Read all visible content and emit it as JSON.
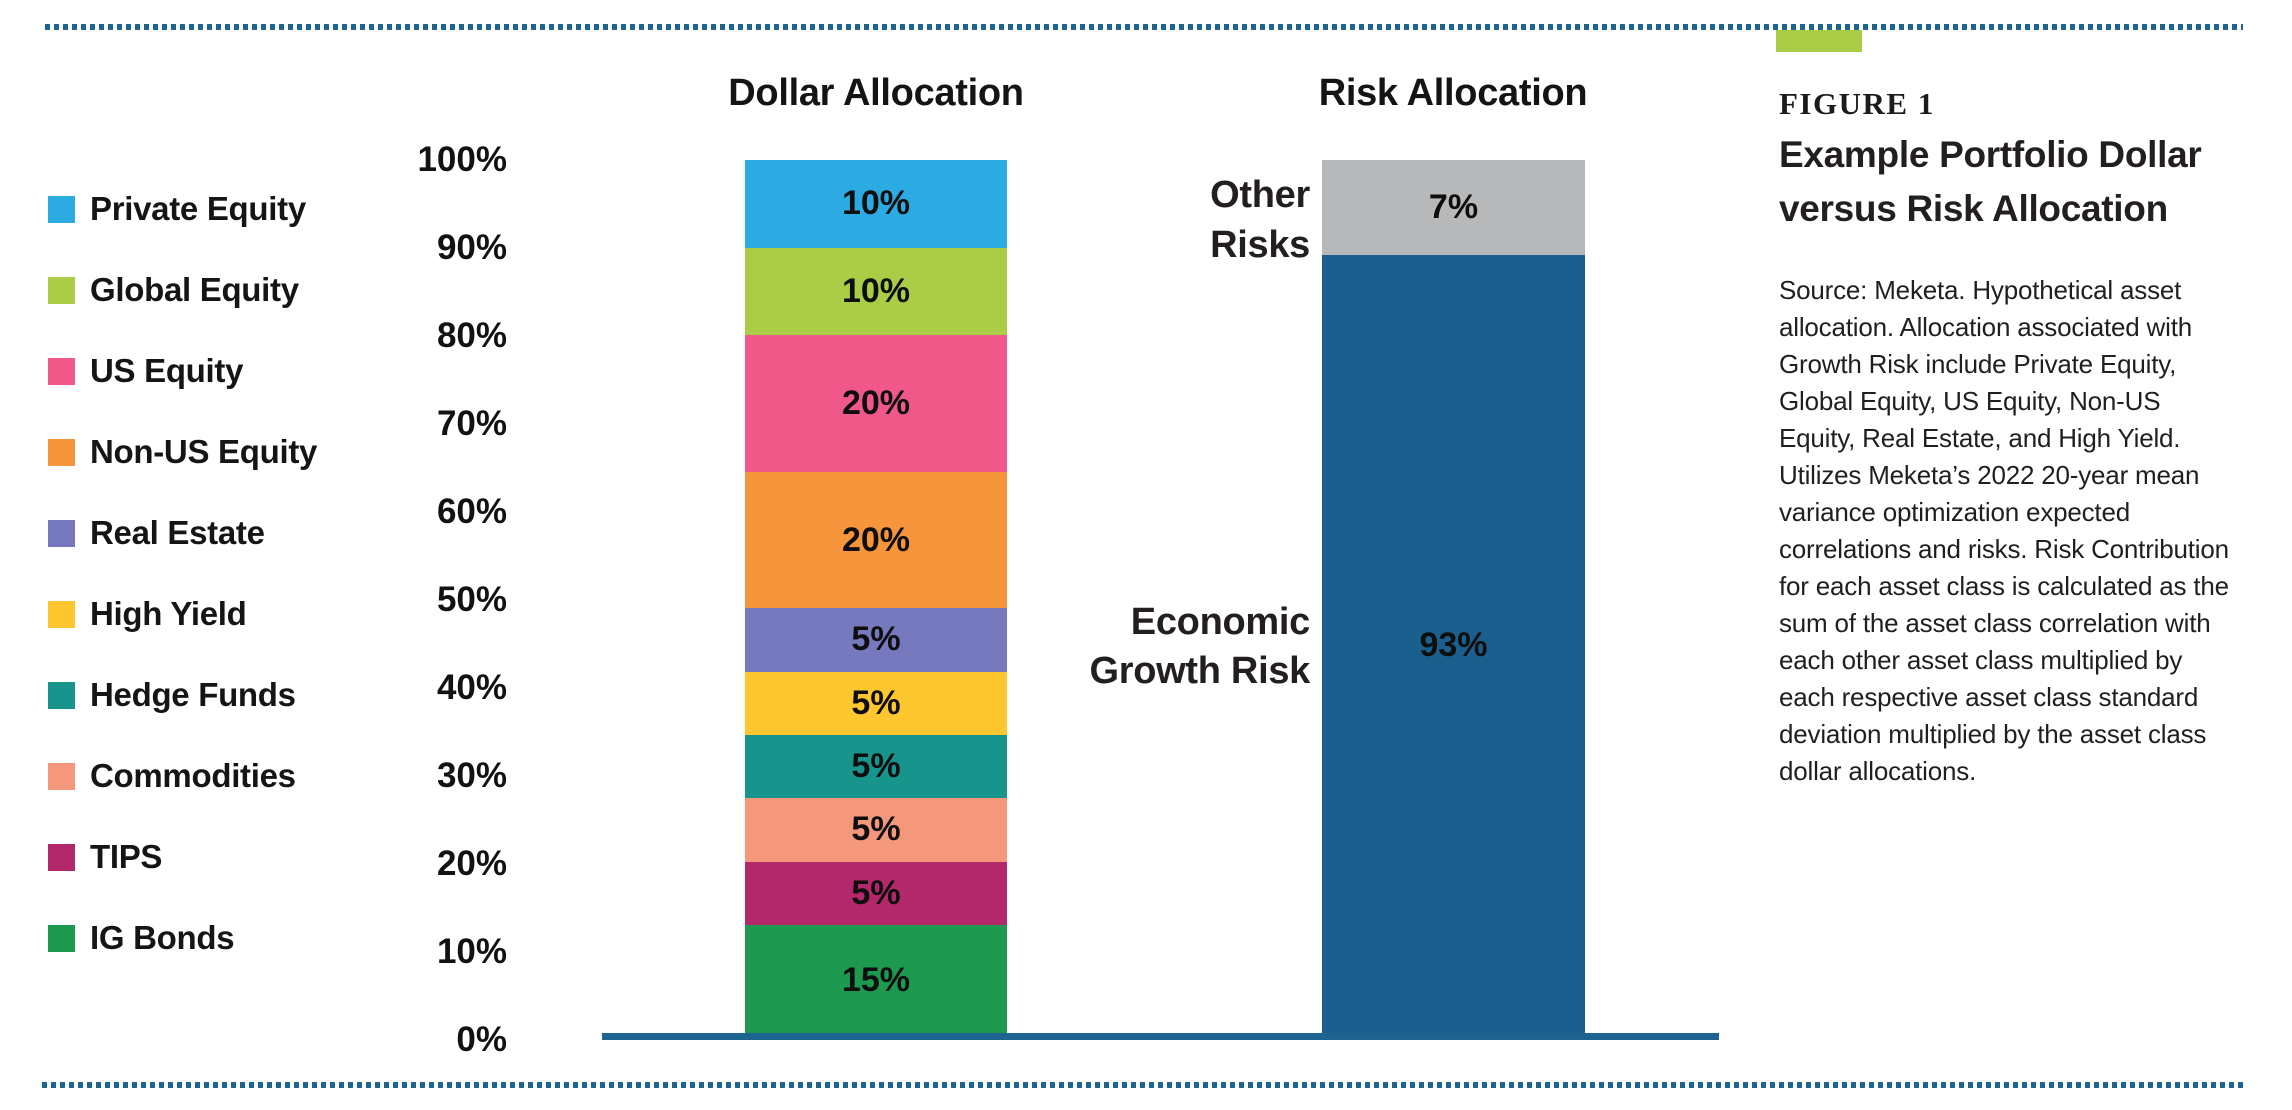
{
  "colors": {
    "border_dotted": "#1d6590",
    "axis_line": "#1d6590",
    "text_black": "#161415",
    "annotation_gray_black": "#231f20"
  },
  "figure": {
    "label": "FIGURE 1",
    "title_line1": "Example Portfolio Dollar",
    "title_line2": "versus Risk Allocation",
    "accent_color": "#abcc47",
    "source": "Source: Meketa. Hypothetical asset allocation. Allocation associated with Growth Risk include Private Equity, Global Equity, US Equity, Non-US Equity, Real Estate, and High Yield. Utilizes Meketa’s 2022 20-year mean variance optimization expected correlations and risks. Risk Contribution for each asset class is calculated as the sum of the asset class correlation with each other asset class multiplied by each respective asset class standard deviation multiplied by the asset class dollar allocations."
  },
  "legend": {
    "items": [
      {
        "label": "Private Equity",
        "color": "#2babe2"
      },
      {
        "label": "Global Equity",
        "color": "#abcc47"
      },
      {
        "label": "US Equity",
        "color": "#f0588a"
      },
      {
        "label": "Non-US Equity",
        "color": "#f6953b"
      },
      {
        "label": "Real Estate",
        "color": "#7679bd"
      },
      {
        "label": "High Yield",
        "color": "#ffc72f"
      },
      {
        "label": "Hedge Funds",
        "color": "#17958c"
      },
      {
        "label": "Commodities",
        "color": "#f4977b"
      },
      {
        "label": "TIPS",
        "color": "#b2286a"
      },
      {
        "label": "IG Bonds",
        "color": "#1e9a50"
      }
    ]
  },
  "annotations": {
    "other": [
      "Other",
      "Risks"
    ],
    "growth": [
      "Economic",
      "Growth Risk"
    ]
  },
  "chart_data": {
    "type": "bar",
    "stacked": true,
    "unit": "percent",
    "ylim": [
      0,
      100
    ],
    "grid": false,
    "y_ticks": [
      "100%",
      "90%",
      "80%",
      "70%",
      "60%",
      "50%",
      "40%",
      "30%",
      "20%",
      "10%",
      "0%"
    ],
    "columns": [
      {
        "title": "Dollar Allocation",
        "segments_top_to_bottom": [
          {
            "label": "Private Equity",
            "value": 10,
            "display": "10%",
            "color": "#2babe2"
          },
          {
            "label": "Global Equity",
            "value": 10,
            "display": "10%",
            "color": "#abcc47"
          },
          {
            "label": "US Equity",
            "value": 20,
            "display": "20%",
            "color": "#f0588a"
          },
          {
            "label": "Non-US Equity",
            "value": 20,
            "display": "20%",
            "color": "#f6953b"
          },
          {
            "label": "Real Estate",
            "value": 5,
            "display": "5%",
            "color": "#7679bd"
          },
          {
            "label": "High Yield",
            "value": 5,
            "display": "5%",
            "color": "#ffc72f"
          },
          {
            "label": "Hedge Funds",
            "value": 5,
            "display": "5%",
            "color": "#17958c"
          },
          {
            "label": "Commodities",
            "value": 5,
            "display": "5%",
            "color": "#f4977b"
          },
          {
            "label": "TIPS",
            "value": 5,
            "display": "5%",
            "color": "#b2286a"
          },
          {
            "label": "IG Bonds",
            "value": 15,
            "display": "15%",
            "color": "#1e9a50"
          }
        ]
      },
      {
        "title": "Risk Allocation",
        "segments_top_to_bottom": [
          {
            "label": "Other Risks",
            "value": 7,
            "display": "7%",
            "color": "#b7b8ba"
          },
          {
            "label": "Economic Growth Risk",
            "value": 93,
            "display": "93%",
            "color": "#1b5f8e"
          }
        ]
      }
    ]
  }
}
